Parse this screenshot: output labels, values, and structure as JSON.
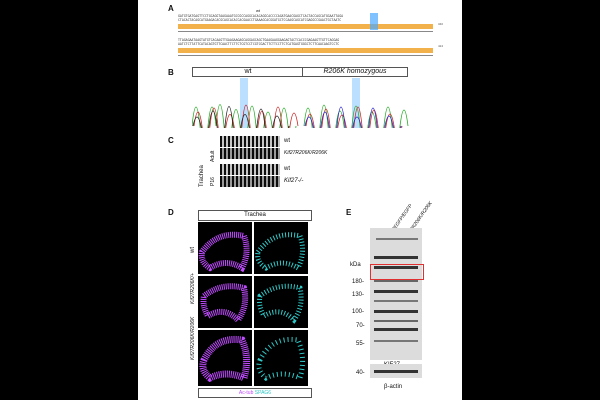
{
  "panels": {
    "A": {
      "letter": "A",
      "marker": "wt",
      "seq_lines": [
        "GATGTGATGAGTTCCTGCAGGTAAGAAATGCCGCCAGGCACACAGGCACCCCAGATGAACGAGCTCACTACCAGCATGGAATTAGA",
        "CTACACTACAGCATGAAGACACGCAGCACACCACGAACCTGAAAGCACGGATGCTCCAAGCAGCATCGAGGCCGAACTGCTAATC",
        "TTAGAGAATAAGTATGTCACAAGTTGAAGAAGAGCAGGAGCAGCTGAAGAAGGAAGAGTACTCACCCGAGAAGTTGTTCAGGAG",
        "AATCTCTTATTCATACAGTGTTCAACTTCTTCTCGTCCTCGTCGACTTCTTCCTTCTCATGAGTGGGCTCTTCAACAAGTCCTC"
      ],
      "side_labels": [
        "340",
        "424"
      ]
    },
    "B": {
      "letter": "B",
      "left_label": "wt",
      "right_label": "R206K homozygous"
    },
    "C": {
      "letter": "C",
      "tissue": "Trachea",
      "ages": [
        "Adult",
        "P16"
      ],
      "rows": [
        {
          "label": "wt",
          "italic": false
        },
        {
          "label": "Kif27R206K/R206K",
          "italic": true
        },
        {
          "label": "wt",
          "italic": false
        },
        {
          "label": "Kif27-/-",
          "italic": true
        }
      ]
    },
    "D": {
      "letter": "D",
      "title": "Trachea",
      "rows": [
        "wt",
        "Kif27R206K/+",
        "Kif27R206K/R206K"
      ],
      "legend_left": "Ac-tub",
      "legend_right": "SPAG6",
      "colors": {
        "magenta": "#c04cff",
        "cyan": "#2fc8c8"
      }
    },
    "E": {
      "letter": "E",
      "lanes": [
        "Kif27EGFP/EGFP",
        "Kif27R206K/R206K"
      ],
      "kda_label": "kDa",
      "markers": [
        "180-",
        "130-",
        "100-",
        "70-",
        "55-"
      ],
      "target": "KIF27",
      "loading_marker": "40-",
      "loading": "β-actin"
    }
  }
}
